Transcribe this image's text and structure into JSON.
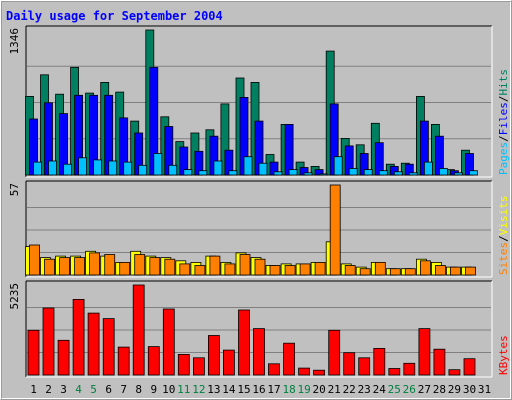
{
  "chart_data": {
    "type": "bar",
    "title": "Daily usage for September 2004",
    "categories": [
      "1",
      "2",
      "3",
      "4",
      "5",
      "6",
      "7",
      "8",
      "9",
      "10",
      "11",
      "12",
      "13",
      "14",
      "15",
      "16",
      "17",
      "18",
      "19",
      "20",
      "21",
      "22",
      "23",
      "24",
      "25",
      "26",
      "27",
      "28",
      "29",
      "30",
      "31"
    ],
    "weekend_days": [
      "4",
      "5",
      "11",
      "12",
      "18",
      "19",
      "25",
      "26"
    ],
    "panels": [
      {
        "id": "hits-files-pages",
        "ymax_label": "1346",
        "ylim": [
          0,
          1346
        ],
        "grid": true,
        "legend_right": [
          "Pages",
          "/",
          "Files",
          "/",
          "Hits"
        ],
        "legend_colors": [
          "#00c0ff",
          "#000000",
          "#0000ff",
          "#000000",
          "#008060"
        ],
        "series": [
          {
            "name": "Hits",
            "color": "#008060",
            "values": [
              730,
              930,
              750,
              1000,
              760,
              860,
              770,
              500,
              1346,
              540,
              310,
              390,
              420,
              660,
              900,
              860,
              190,
              470,
              120,
              80,
              1150,
              340,
              280,
              480,
              100,
              110,
              730,
              470,
              50,
              230,
              0
            ]
          },
          {
            "name": "Files",
            "color": "#0000ff",
            "values": [
              520,
              670,
              570,
              740,
              740,
              740,
              530,
              390,
              1000,
              450,
              260,
              220,
              360,
              230,
              720,
              500,
              120,
              470,
              70,
              50,
              660,
              270,
              200,
              300,
              80,
              100,
              500,
              360,
              40,
              200,
              0
            ]
          },
          {
            "name": "Pages",
            "color": "#00c0ff",
            "values": [
              120,
              130,
              100,
              160,
              140,
              130,
              120,
              90,
              200,
              90,
              50,
              40,
              130,
              40,
              170,
              110,
              30,
              50,
              20,
              10,
              170,
              60,
              50,
              40,
              30,
              20,
              120,
              60,
              20,
              40,
              0
            ]
          }
        ]
      },
      {
        "id": "visits-sites",
        "ymax_label": "57",
        "ylim": [
          0,
          57
        ],
        "grid": true,
        "legend_right": [
          "Sites",
          "/",
          "Visits"
        ],
        "legend_colors": [
          "#ff8000",
          "#000000",
          "#ffff00"
        ],
        "series": [
          {
            "name": "Visits",
            "color": "#ffff00",
            "values": [
              18,
              11,
              12,
              12,
              15,
              12,
              8,
              15,
              12,
              11,
              9,
              8,
              12,
              8,
              14,
              11,
              6,
              7,
              7,
              8,
              21,
              7,
              5,
              8,
              4,
              4,
              10,
              8,
              5,
              5,
              0
            ]
          },
          {
            "name": "Sites",
            "color": "#ff8000",
            "values": [
              19,
              10,
              11,
              11,
              14,
              13,
              8,
              13,
              11,
              10,
              7,
              6,
              12,
              7,
              13,
              10,
              6,
              6,
              7,
              8,
              57,
              6,
              4,
              8,
              4,
              4,
              9,
              6,
              5,
              5,
              0
            ]
          }
        ]
      },
      {
        "id": "kbytes",
        "ymax_label": "5235",
        "ylim": [
          0,
          5235
        ],
        "grid": true,
        "legend_right": [
          "KBytes"
        ],
        "legend_colors": [
          "#ff0000"
        ],
        "series": [
          {
            "name": "KBytes",
            "color": "#ff0000",
            "values": [
              2600,
              3900,
              2020,
              4400,
              3600,
              3280,
              1620,
              5235,
              1650,
              3840,
              1200,
              1000,
              2300,
              1450,
              3780,
              2700,
              650,
              1850,
              400,
              280,
              2600,
              1300,
              1000,
              1550,
              380,
              680,
              2700,
              1500,
              310,
              950,
              0
            ]
          }
        ]
      }
    ]
  }
}
